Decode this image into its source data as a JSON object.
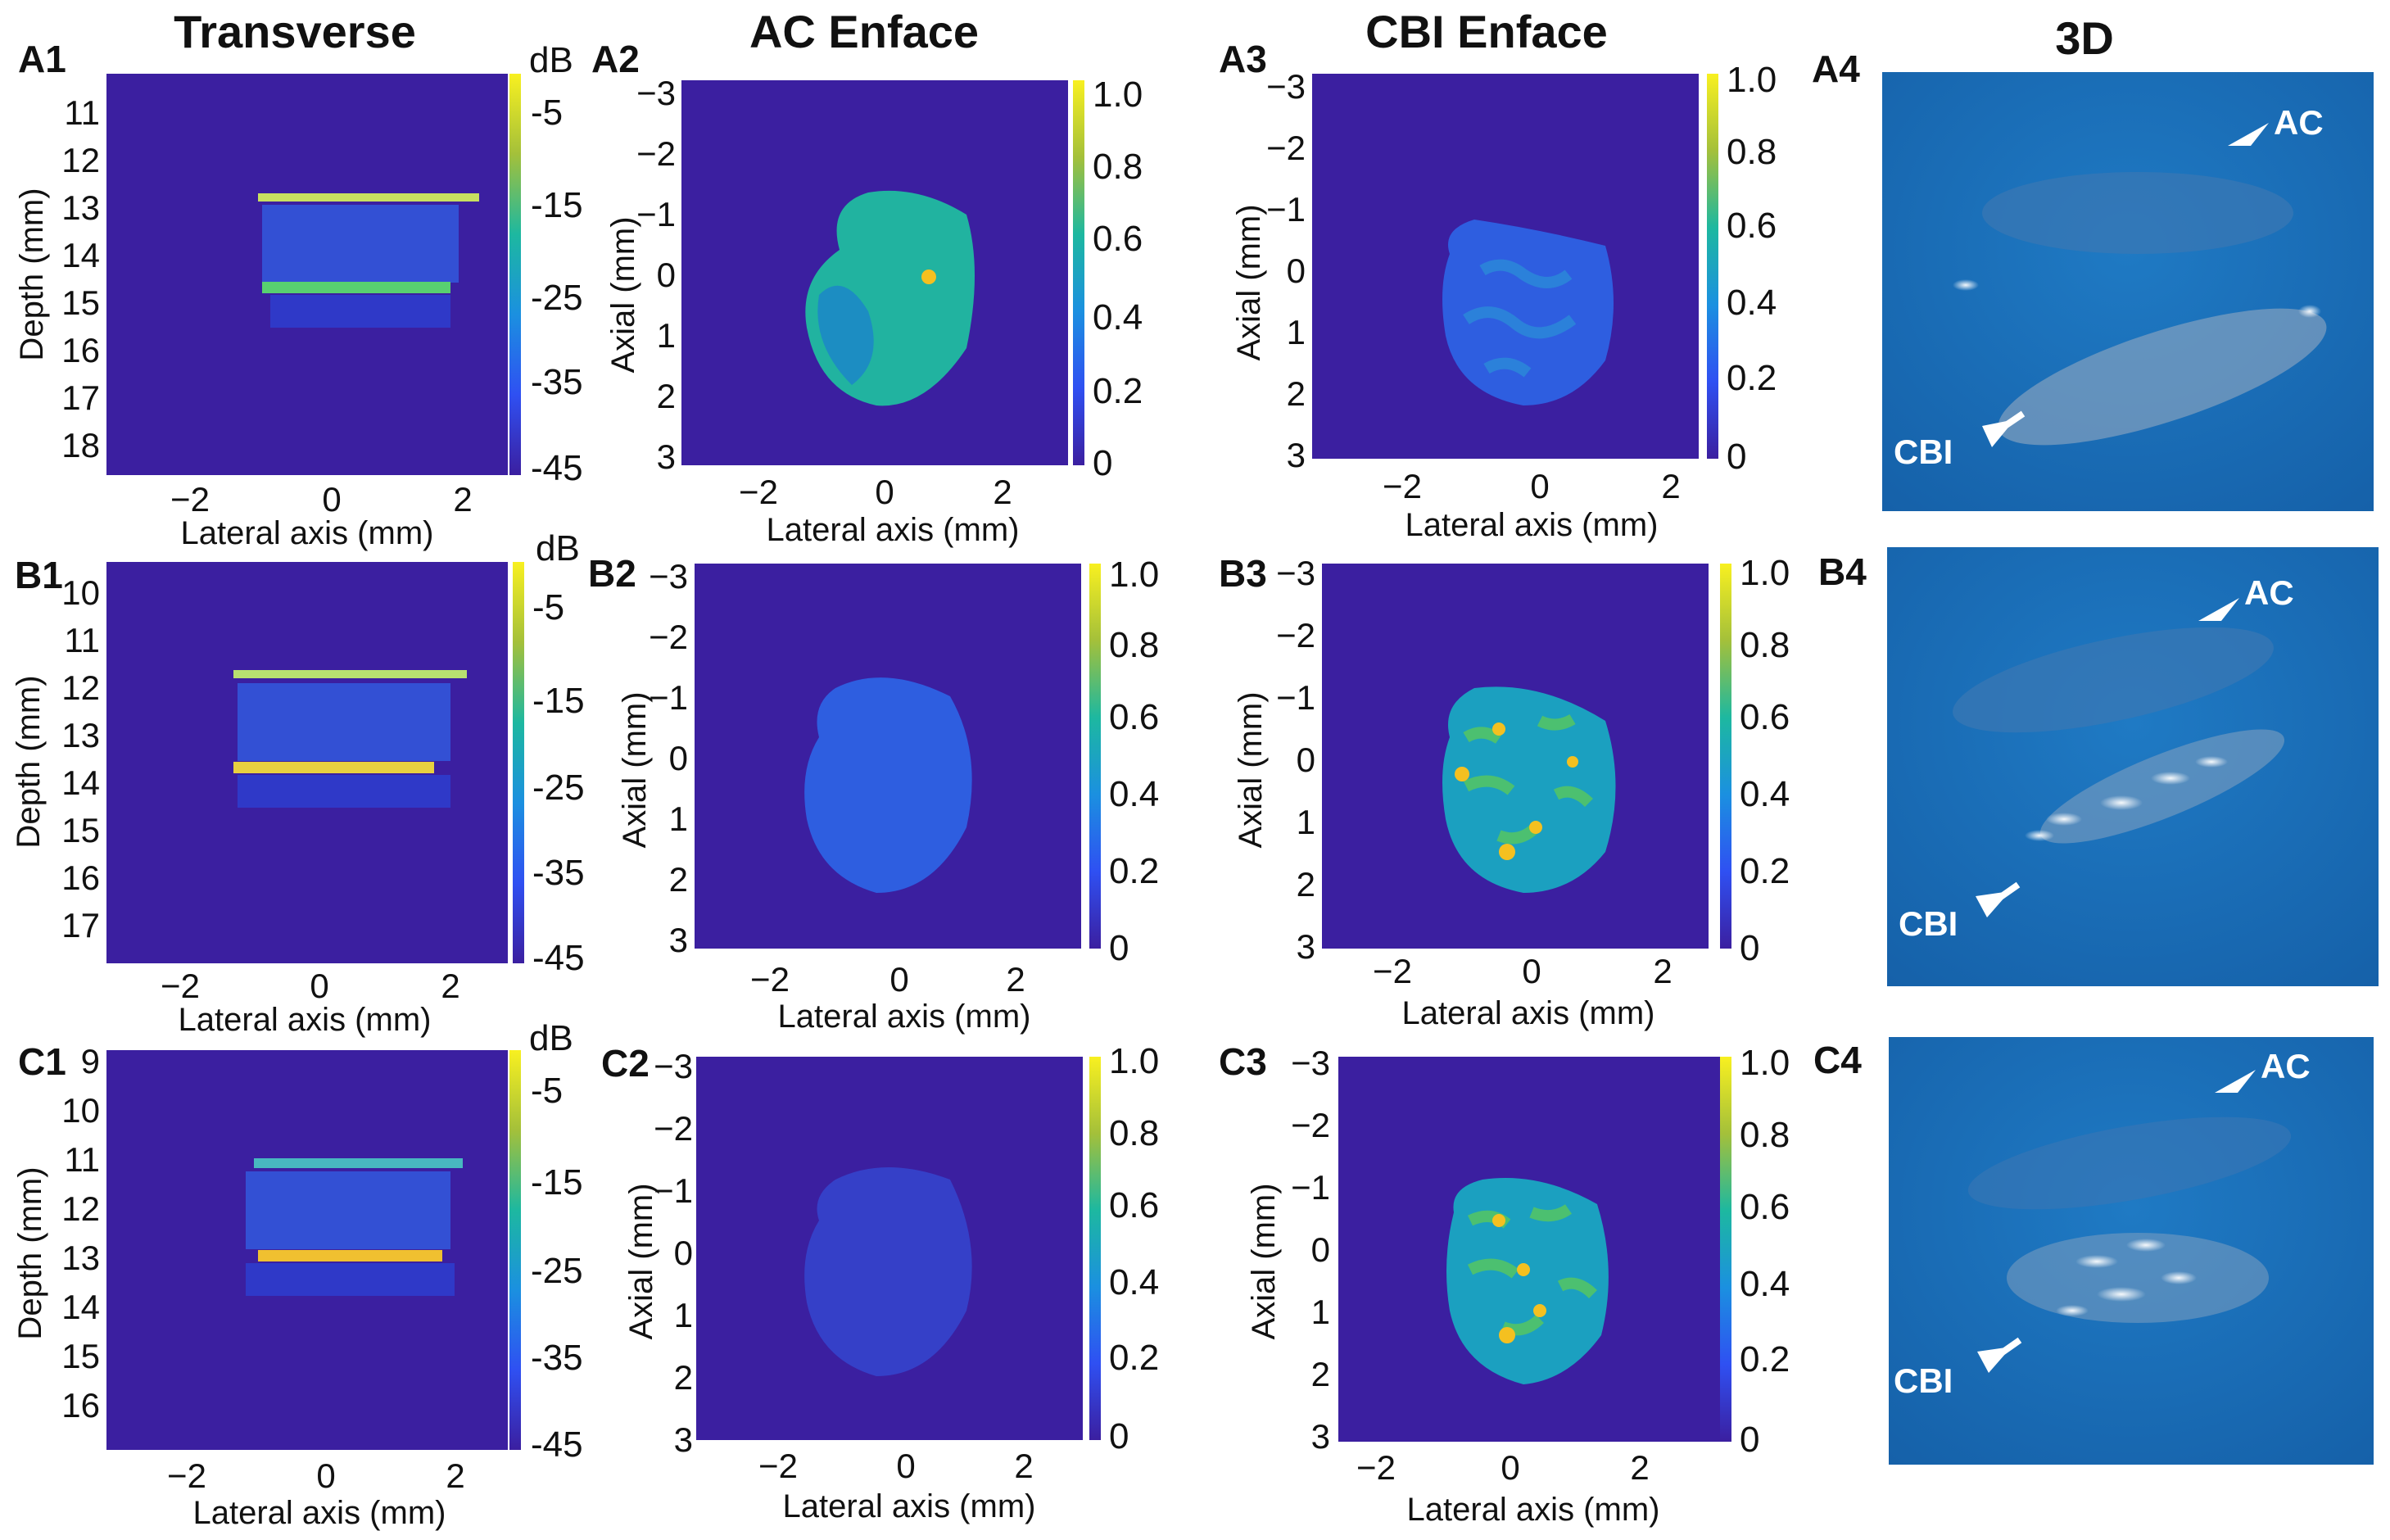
{
  "column_headers": [
    "Transverse",
    "AC Enface",
    "CBI Enface",
    "3D"
  ],
  "rows": [
    {
      "labels": [
        "A1",
        "A2",
        "A3",
        "A4"
      ],
      "transverse": {
        "depth_ticks": [
          "11",
          "12",
          "13",
          "14",
          "15",
          "16",
          "17",
          "18"
        ]
      }
    },
    {
      "labels": [
        "B1",
        "B2",
        "B3",
        "B4"
      ],
      "transverse": {
        "depth_ticks": [
          "10",
          "11",
          "12",
          "13",
          "14",
          "15",
          "16",
          "17"
        ]
      }
    },
    {
      "labels": [
        "C1",
        "C2",
        "C3",
        "C4"
      ],
      "transverse": {
        "depth_ticks": [
          "9",
          "10",
          "11",
          "12",
          "13",
          "14",
          "15",
          "16"
        ]
      }
    }
  ],
  "axes": {
    "lateral_label": "Lateral axis (mm)",
    "depth_label": "Depth (mm)",
    "axial_label": "Axial (mm)",
    "lateral_ticks": [
      "−2",
      "0",
      "2"
    ],
    "axial_ticks": [
      "−3",
      "−2",
      "−1",
      "0",
      "1",
      "2",
      "3"
    ]
  },
  "colorbars": {
    "db_unit": "dB",
    "db_ticks": [
      "-5",
      "-15",
      "-25",
      "-35",
      "-45"
    ],
    "norm_ticks": [
      "1.0",
      "0.8",
      "0.6",
      "0.4",
      "0.2",
      "0"
    ]
  },
  "annotations": {
    "ac": "AC",
    "cbi": "CBI"
  },
  "colors": {
    "background": "#3b1fa0",
    "panel3d": "#1a6fb8",
    "ac_blob": "#21b3a0",
    "blob_blue": "#2e5ee0",
    "hot": "#f4c020"
  }
}
